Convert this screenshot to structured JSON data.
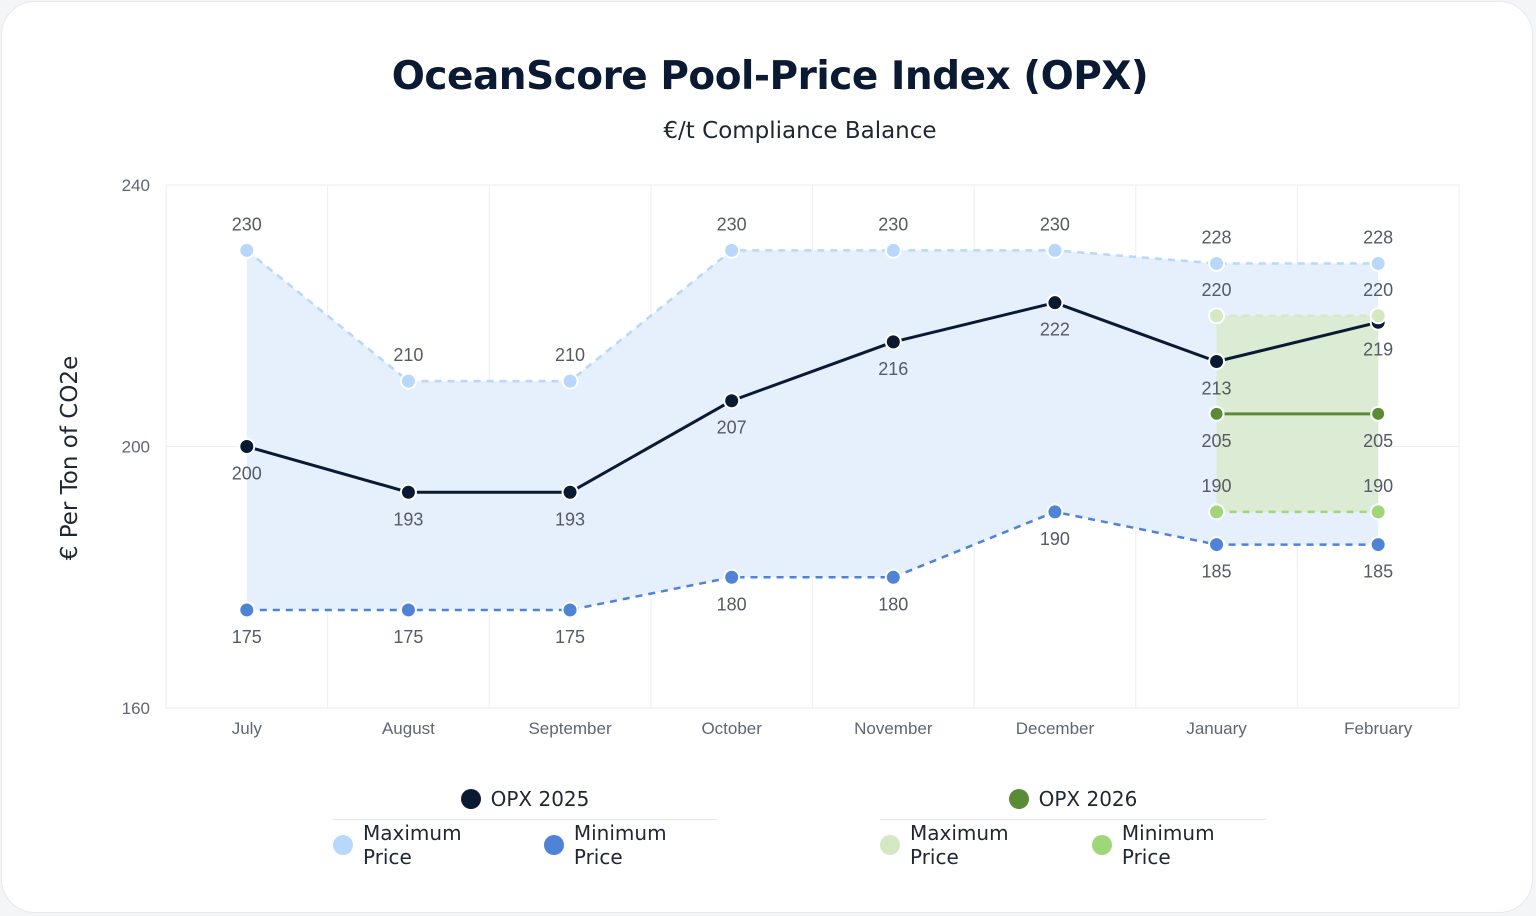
{
  "colors": {
    "opx2025_line": "#0b1a33",
    "max2025": "#b8d7fb",
    "min2025": "#4f83d8",
    "band2025": "#e6effc",
    "opx2026_line": "#5a8c38",
    "max2026": "#d4e8c4",
    "min2026": "#9fd678",
    "band2026": "#dcebd3"
  },
  "legend": {
    "group2025": {
      "title": "OPX 2025",
      "dot_icon": "navy-circle-icon",
      "items": [
        {
          "label": "Maximum Price",
          "icon": "light-blue-circle-icon"
        },
        {
          "label": "Minimum Price",
          "icon": "blue-circle-icon"
        }
      ]
    },
    "group2026": {
      "title": "OPX 2026",
      "dot_icon": "green-circle-icon",
      "items": [
        {
          "label": "Maximum Price",
          "icon": "pale-green-circle-icon"
        },
        {
          "label": "Minimum Price",
          "icon": "light-green-circle-icon"
        }
      ]
    }
  },
  "chart_data": {
    "type": "line",
    "title": "OceanScore Pool-Price Index (OPX)",
    "subtitle": "€/t Compliance Balance",
    "xlabel": "",
    "ylabel": "€ Per Ton of CO2e",
    "ylim": [
      160,
      240
    ],
    "yticks": [
      160,
      200,
      240
    ],
    "grid": true,
    "legend_position": "bottom",
    "categories": [
      "July",
      "August",
      "September",
      "October",
      "November",
      "December",
      "January",
      "February"
    ],
    "series": [
      {
        "name": "OPX 2025",
        "style": "solid",
        "values": [
          200,
          193,
          193,
          207,
          216,
          222,
          213,
          219
        ]
      },
      {
        "name": "Maximum Price",
        "group": "OPX 2025",
        "style": "dashed",
        "values": [
          230,
          210,
          210,
          230,
          230,
          230,
          228,
          228
        ]
      },
      {
        "name": "Minimum Price",
        "group": "OPX 2025",
        "style": "dashed",
        "values": [
          175,
          175,
          175,
          180,
          180,
          190,
          185,
          185
        ]
      },
      {
        "name": "OPX 2026",
        "style": "solid",
        "values": [
          null,
          null,
          null,
          null,
          null,
          null,
          205,
          205
        ]
      },
      {
        "name": "Maximum Price",
        "group": "OPX 2026",
        "style": "dashed",
        "values": [
          null,
          null,
          null,
          null,
          null,
          null,
          220,
          220
        ]
      },
      {
        "name": "Minimum Price",
        "group": "OPX 2026",
        "style": "dashed",
        "values": [
          null,
          null,
          null,
          null,
          null,
          null,
          190,
          190
        ]
      }
    ]
  }
}
